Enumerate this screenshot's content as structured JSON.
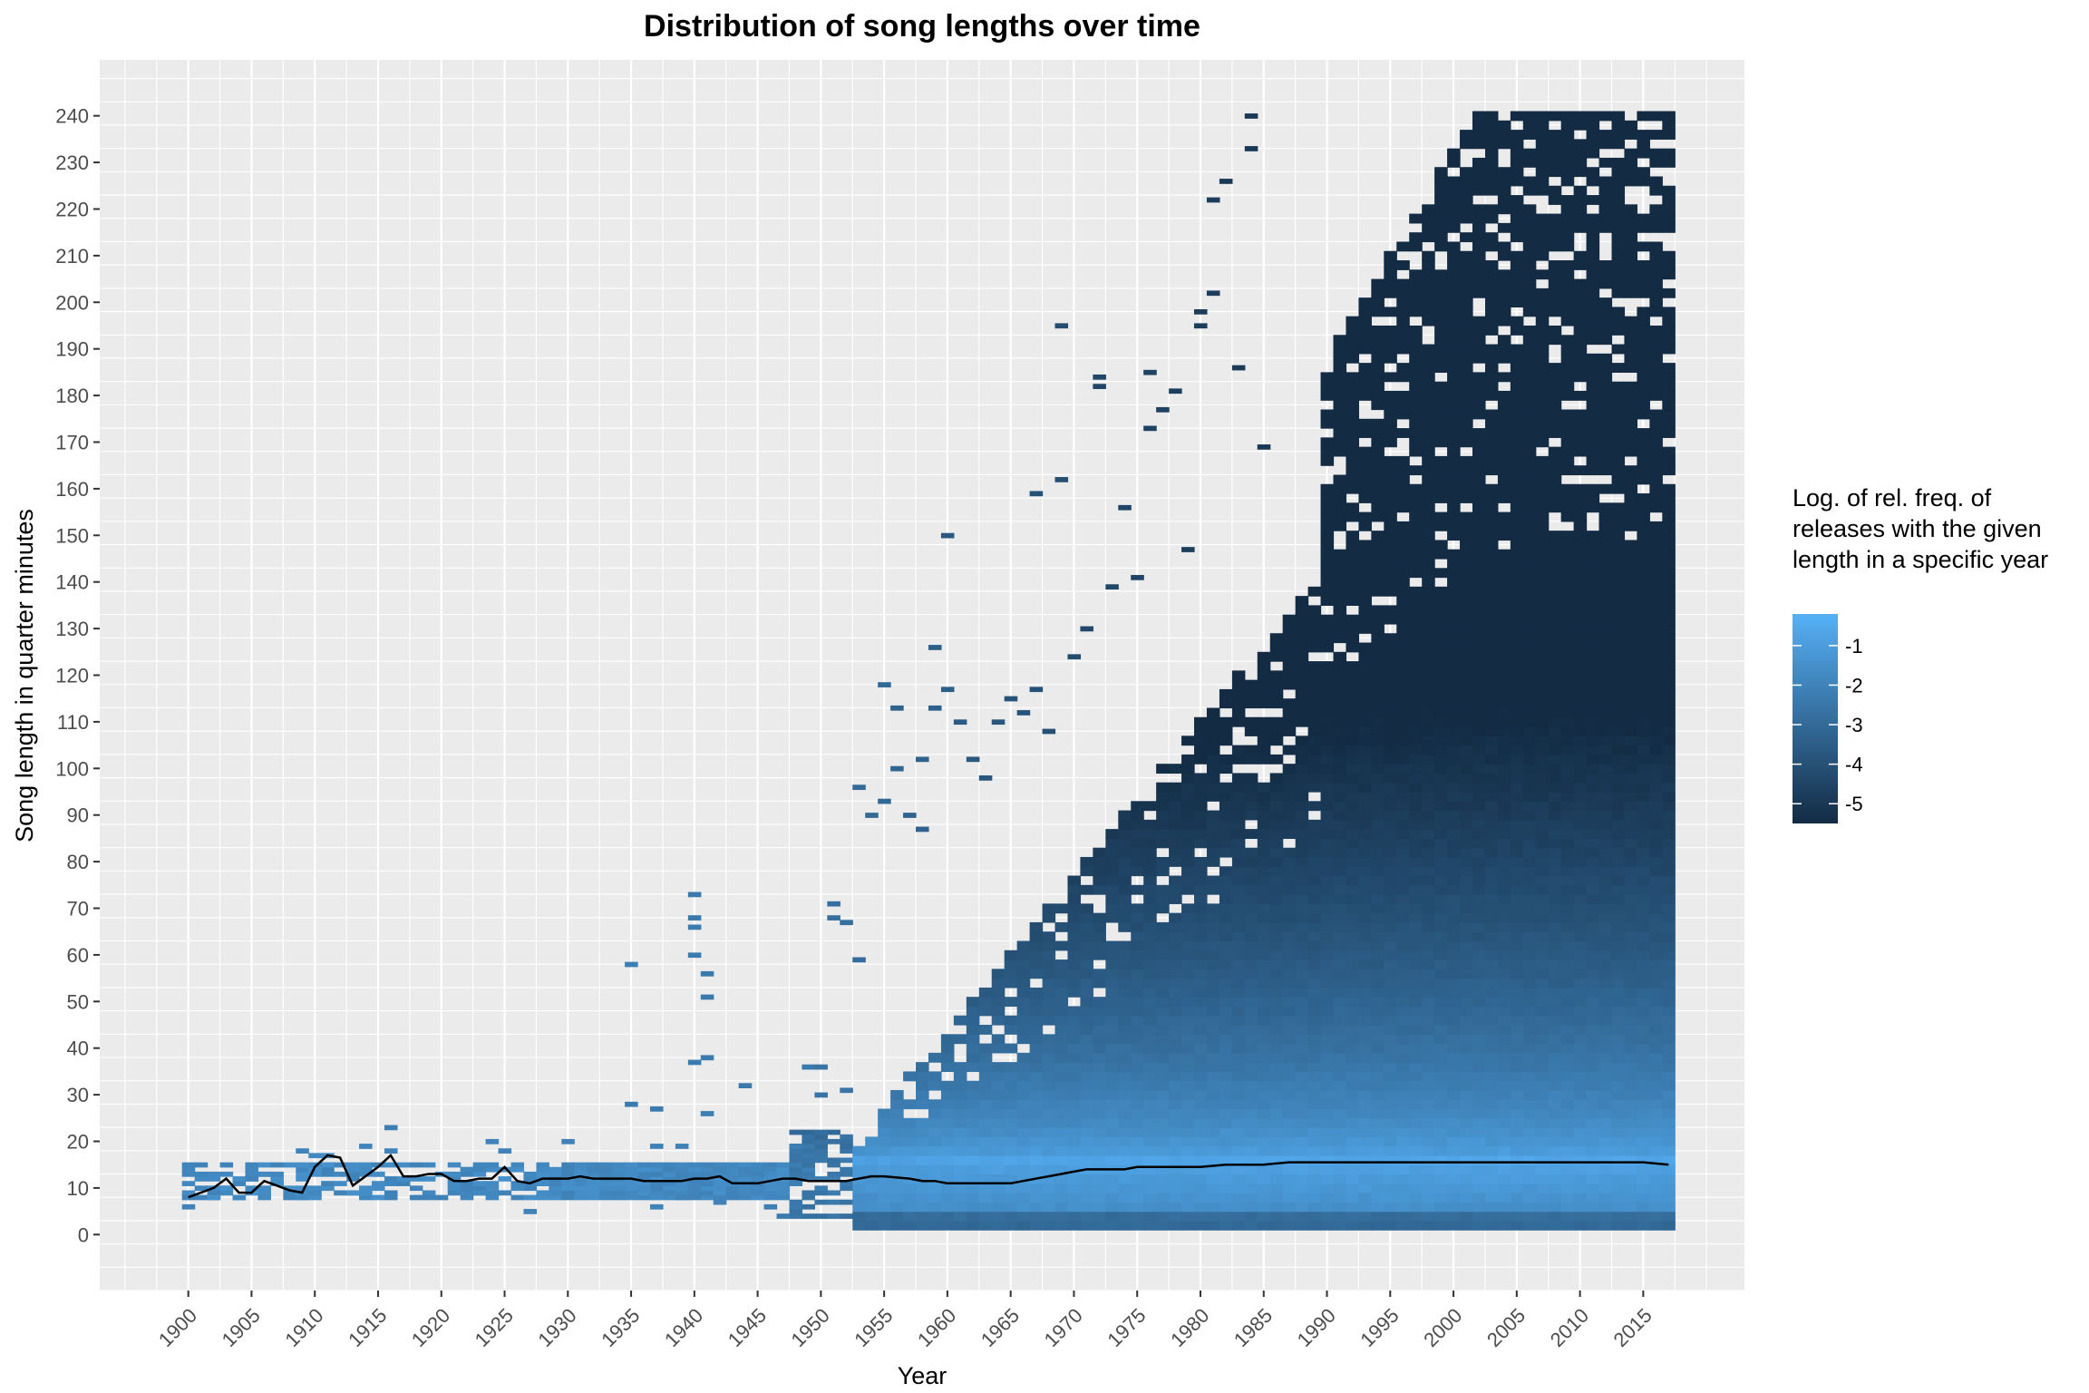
{
  "chart_data": {
    "type": "heatmap",
    "title": "Distribution of song lengths over time",
    "xlabel": "Year",
    "ylabel": "Song length in quarter minutes",
    "xlim": [
      1893,
      2023
    ],
    "ylim": [
      -12,
      252
    ],
    "x_ticks": [
      1900,
      1905,
      1910,
      1915,
      1920,
      1925,
      1930,
      1935,
      1940,
      1945,
      1950,
      1955,
      1960,
      1965,
      1970,
      1975,
      1980,
      1985,
      1990,
      1995,
      2000,
      2005,
      2010,
      2015
    ],
    "y_ticks": [
      0,
      10,
      20,
      30,
      40,
      50,
      60,
      70,
      80,
      90,
      100,
      110,
      120,
      130,
      140,
      150,
      160,
      170,
      180,
      190,
      200,
      210,
      220,
      230,
      240
    ],
    "grid": true,
    "legend": {
      "title": [
        "Log. of rel. freq. of",
        "releases with the given",
        "length in a specific year"
      ],
      "position": "right",
      "ticks": [
        -1,
        -2,
        -3,
        -4,
        -5
      ],
      "range": [
        -5.5,
        -0.2
      ],
      "colors": {
        "low": "#132b43",
        "high": "#56b1f7"
      }
    },
    "fill_range": [
      -5.5,
      -0.2
    ],
    "mode_line": {
      "years": [
        1900,
        1901,
        1902,
        1903,
        1904,
        1905,
        1906,
        1907,
        1908,
        1909,
        1910,
        1911,
        1912,
        1913,
        1914,
        1915,
        1916,
        1917,
        1918,
        1919,
        1920,
        1921,
        1922,
        1923,
        1924,
        1925,
        1926,
        1927,
        1928,
        1929,
        1930,
        1931,
        1932,
        1933,
        1934,
        1935,
        1936,
        1937,
        1938,
        1939,
        1940,
        1941,
        1942,
        1943,
        1944,
        1945,
        1946,
        1947,
        1948,
        1949,
        1950,
        1951,
        1952,
        1953,
        1954,
        1955,
        1957,
        1958,
        1959,
        1960,
        1961,
        1962,
        1963,
        1965,
        1966,
        1967,
        1968,
        1969,
        1970,
        1971,
        1972,
        1973,
        1974,
        1975,
        1976,
        1977,
        1978,
        1979,
        1980,
        1982,
        1984,
        1985,
        1987,
        1990,
        1995,
        1998,
        2000,
        2003,
        2005,
        2008,
        2009,
        2010,
        2013,
        2015,
        2017
      ],
      "values": [
        8,
        9,
        10,
        12,
        9,
        9,
        11.5,
        10.5,
        9.5,
        9,
        14.5,
        17,
        16.5,
        10.5,
        12.5,
        14.5,
        17,
        12.5,
        12.5,
        13,
        13,
        11.5,
        11.5,
        12,
        12,
        14.5,
        11.5,
        11,
        12,
        12,
        12,
        12.5,
        12,
        12,
        12,
        12,
        11.5,
        11.5,
        11.5,
        11.5,
        12,
        12,
        12.5,
        11,
        11,
        11,
        11.5,
        12,
        12,
        11.5,
        11.5,
        11.5,
        11.5,
        12,
        12.5,
        12.5,
        12,
        11.5,
        11.5,
        11,
        11,
        11,
        11,
        11,
        11.5,
        12,
        12.5,
        13,
        13.5,
        14,
        14,
        14,
        14,
        14.5,
        14.5,
        14.5,
        14.5,
        14.5,
        14.5,
        15,
        15,
        15,
        15.5,
        15.5,
        15.5,
        15.5,
        15.5,
        15.5,
        15.5,
        15.5,
        15.5,
        15.5,
        15.5,
        15.5,
        15
      ]
    },
    "sparse_cells": [
      [
        1900,
        6,
        -2
      ],
      [
        1900,
        8,
        -2
      ],
      [
        1901,
        8,
        -2
      ],
      [
        1902,
        8,
        -1.5
      ],
      [
        1902,
        13,
        -1.8
      ],
      [
        1903,
        10,
        -1.5
      ],
      [
        1903,
        15,
        -2
      ],
      [
        1904,
        8,
        -1.8
      ],
      [
        1905,
        9,
        -1.5
      ],
      [
        1905,
        12,
        -2
      ],
      [
        1906,
        13,
        -1.8
      ],
      [
        1907,
        11,
        -1.6
      ],
      [
        1908,
        10,
        -1.5
      ],
      [
        1909,
        8,
        -1.8
      ],
      [
        1909,
        18,
        -2
      ],
      [
        1910,
        14,
        -1.5
      ],
      [
        1910,
        17,
        -1.8
      ],
      [
        1911,
        15,
        -1.5
      ],
      [
        1911,
        17,
        -1.6
      ],
      [
        1912,
        11,
        -1.7
      ],
      [
        1913,
        9,
        -1.5
      ],
      [
        1914,
        9,
        -1.6
      ],
      [
        1914,
        19,
        -2
      ],
      [
        1915,
        13,
        -1.6
      ],
      [
        1916,
        18,
        -2
      ],
      [
        1916,
        23,
        -2.2
      ],
      [
        1916,
        15,
        -1.7
      ],
      [
        1917,
        12,
        -1.6
      ],
      [
        1918,
        12,
        -1.7
      ],
      [
        1919,
        8,
        -2
      ],
      [
        1920,
        13,
        -1.6
      ],
      [
        1921,
        11,
        -1.7
      ],
      [
        1922,
        14,
        -1.9
      ],
      [
        1923,
        9,
        -1.8
      ],
      [
        1924,
        20,
        -2
      ],
      [
        1925,
        14,
        -1.6
      ],
      [
        1925,
        18,
        -2
      ],
      [
        1926,
        10,
        -1.8
      ],
      [
        1927,
        5,
        -2
      ],
      [
        1928,
        11,
        -1.7
      ],
      [
        1929,
        9,
        -1.8
      ],
      [
        1930,
        20,
        -2
      ],
      [
        1931,
        13,
        -1.6
      ],
      [
        1932,
        12,
        -1.5
      ],
      [
        1933,
        11,
        -1.6
      ],
      [
        1934,
        10,
        -1.7
      ],
      [
        1935,
        28,
        -2.3
      ],
      [
        1935,
        58,
        -2.2
      ],
      [
        1936,
        10,
        -1.7
      ],
      [
        1937,
        6,
        -2
      ],
      [
        1937,
        27,
        -2.3
      ],
      [
        1937,
        19,
        -2.1
      ],
      [
        1938,
        9,
        -1.9
      ],
      [
        1939,
        8,
        -2
      ],
      [
        1939,
        19,
        -2.1
      ],
      [
        1940,
        37,
        -2.3
      ],
      [
        1940,
        60,
        -2.3
      ],
      [
        1940,
        66,
        -2.3
      ],
      [
        1940,
        68,
        -2.4
      ],
      [
        1940,
        73,
        -2.4
      ],
      [
        1941,
        26,
        -2.2
      ],
      [
        1941,
        38,
        -2.3
      ],
      [
        1941,
        51,
        -2.4
      ],
      [
        1941,
        56,
        -2.4
      ],
      [
        1942,
        7,
        -2
      ],
      [
        1944,
        32,
        -2.4
      ],
      [
        1945,
        13,
        -2
      ],
      [
        1946,
        6,
        -2.2
      ],
      [
        1947,
        4,
        -2.3
      ],
      [
        1948,
        19,
        -2.2
      ],
      [
        1949,
        36,
        -2.4
      ],
      [
        1950,
        30,
        -2.6
      ],
      [
        1950,
        36,
        -2.6
      ],
      [
        1951,
        68,
        -2.8
      ],
      [
        1951,
        71,
        -2.8
      ],
      [
        1952,
        31,
        -2.6
      ],
      [
        1952,
        67,
        -2.8
      ],
      [
        1953,
        59,
        -2.9
      ],
      [
        1953,
        96,
        -3
      ],
      [
        1954,
        90,
        -3
      ],
      [
        1955,
        118,
        -3.1
      ],
      [
        1955,
        93,
        -3.1
      ],
      [
        1956,
        113,
        -3.3
      ],
      [
        1956,
        100,
        -3.2
      ],
      [
        1957,
        90,
        -3.3
      ],
      [
        1958,
        87,
        -3.3
      ],
      [
        1958,
        102,
        -3.3
      ],
      [
        1959,
        126,
        -3.5
      ],
      [
        1959,
        113,
        -3.4
      ],
      [
        1960,
        150,
        -3.7
      ],
      [
        1960,
        117,
        -3.5
      ],
      [
        1961,
        110,
        -3.6
      ],
      [
        1962,
        102,
        -3.7
      ],
      [
        1963,
        98,
        -3.8
      ],
      [
        1964,
        110,
        -3.8
      ],
      [
        1965,
        115,
        -3.9
      ],
      [
        1966,
        112,
        -3.9
      ],
      [
        1967,
        159,
        -4
      ],
      [
        1967,
        117,
        -4
      ],
      [
        1968,
        108,
        -4
      ],
      [
        1969,
        162,
        -4.1
      ],
      [
        1969,
        195,
        -4.2
      ],
      [
        1970,
        124,
        -4.2
      ],
      [
        1971,
        130,
        -4.3
      ],
      [
        1972,
        184,
        -4.4
      ],
      [
        1972,
        182,
        -4.4
      ],
      [
        1973,
        139,
        -4.4
      ],
      [
        1974,
        156,
        -4.5
      ],
      [
        1975,
        141,
        -4.5
      ],
      [
        1976,
        185,
        -4.6
      ],
      [
        1976,
        173,
        -4.6
      ],
      [
        1977,
        177,
        -4.6
      ],
      [
        1978,
        181,
        -4.7
      ],
      [
        1979,
        147,
        -4.7
      ],
      [
        1980,
        198,
        -4.8
      ],
      [
        1980,
        195,
        -4.8
      ],
      [
        1981,
        202,
        -4.8
      ],
      [
        1981,
        222,
        -4.8
      ],
      [
        1982,
        226,
        -4.9
      ],
      [
        1983,
        186,
        -4.9
      ],
      [
        1984,
        240,
        -5
      ],
      [
        1984,
        233,
        -5
      ],
      [
        1985,
        169,
        -5
      ]
    ]
  }
}
